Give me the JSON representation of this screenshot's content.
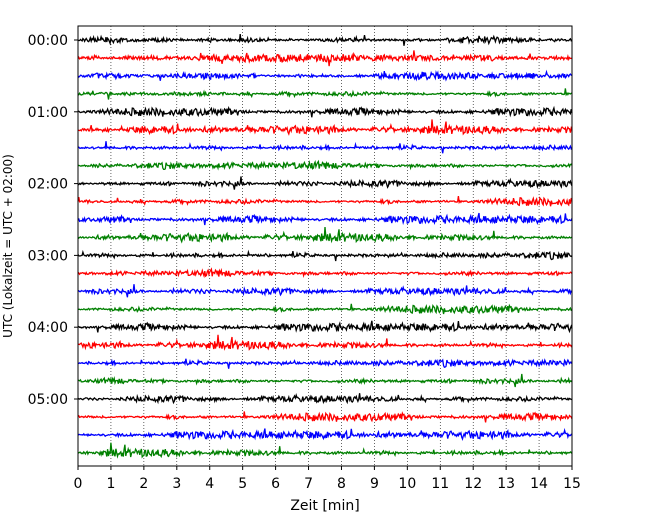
{
  "chart_data": {
    "type": "line",
    "title": "",
    "xlabel": "Zeit  [min]",
    "ylabel": "UTC (Lokalzeit = UTC + 02:00)",
    "xlim": [
      0,
      15
    ],
    "x_ticks": [
      "0",
      "1",
      "2",
      "3",
      "4",
      "5",
      "6",
      "7",
      "8",
      "9",
      "10",
      "11",
      "12",
      "13",
      "14",
      "15"
    ],
    "y_ticks": [
      "00:00",
      "01:00",
      "02:00",
      "03:00",
      "04:00",
      "05:00"
    ],
    "grid": {
      "x": true,
      "y": false,
      "style": "dotted"
    },
    "trace_interval_min": 15,
    "trace_count": 24,
    "trace_colors": [
      "#000000",
      "#ff0000",
      "#0000ff",
      "#008000"
    ],
    "legend": "none"
  }
}
